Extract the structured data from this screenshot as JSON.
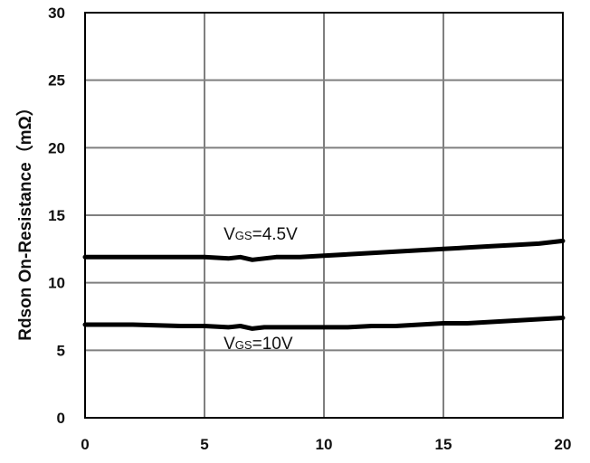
{
  "chart_data": {
    "type": "line",
    "title": "",
    "xlabel": "",
    "ylabel": "Rdson On-Resistance（mΩ）",
    "xlim": [
      0,
      20
    ],
    "ylim": [
      0,
      30
    ],
    "xticks": [
      0,
      5,
      10,
      15,
      20
    ],
    "yticks": [
      0,
      5,
      10,
      15,
      20,
      25,
      30
    ],
    "grid": true,
    "series": [
      {
        "x": [
          0,
          2,
          4,
          5,
          6,
          6.5,
          7,
          7.5,
          8,
          9,
          10,
          11,
          12,
          13,
          14,
          15,
          16,
          17,
          18,
          19,
          20
        ],
        "values": [
          11.9,
          11.9,
          11.9,
          11.9,
          11.8,
          11.9,
          11.7,
          11.8,
          11.9,
          11.9,
          12.0,
          12.1,
          12.2,
          12.3,
          12.4,
          12.5,
          12.6,
          12.7,
          12.8,
          12.9,
          13.1
        ]
      },
      {
        "x": [
          0,
          2,
          4,
          5,
          6,
          6.5,
          7,
          7.5,
          8,
          9,
          10,
          11,
          12,
          13,
          14,
          15,
          16,
          17,
          18,
          19,
          20
        ],
        "values": [
          6.9,
          6.9,
          6.8,
          6.8,
          6.7,
          6.8,
          6.6,
          6.7,
          6.7,
          6.7,
          6.7,
          6.7,
          6.8,
          6.8,
          6.9,
          7.0,
          7.0,
          7.1,
          7.2,
          7.3,
          7.4
        ]
      }
    ],
    "annotations": [
      {
        "main": "V",
        "sub": "GS",
        "rest": "=4.5V",
        "x": 5.8,
        "y": 13.2
      },
      {
        "main": "V",
        "sub": "GS",
        "rest": "=10V",
        "x": 5.8,
        "y": 5.1
      }
    ]
  }
}
